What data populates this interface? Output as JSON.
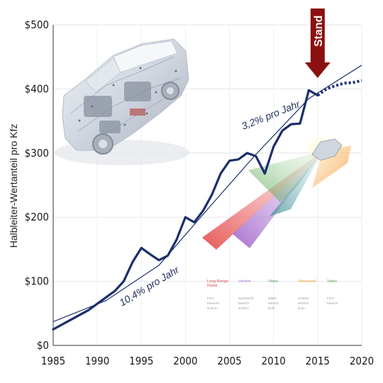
{
  "chart_data": {
    "type": "line",
    "ylabel": "Halbleiter-Wertanteil pro Kfz",
    "x_ticks": [
      "1985",
      "1990",
      "1995",
      "2000",
      "2005",
      "2010",
      "2015",
      "2020"
    ],
    "y_ticks": [
      "$0",
      "$100",
      "$200",
      "$300",
      "$400",
      "$500"
    ],
    "xlim": [
      1985,
      2020
    ],
    "ylim": [
      0,
      500
    ],
    "grid": true,
    "series": [
      {
        "style": "solid",
        "color": "#1b2f6b",
        "points": [
          [
            1985,
            25
          ],
          [
            1987,
            40
          ],
          [
            1989,
            55
          ],
          [
            1991,
            75
          ],
          [
            1992,
            85
          ],
          [
            1993,
            100
          ],
          [
            1994,
            130
          ],
          [
            1995,
            152
          ],
          [
            1996,
            142
          ],
          [
            1997,
            133
          ],
          [
            1998,
            140
          ],
          [
            1999,
            165
          ],
          [
            2000,
            200
          ],
          [
            2001,
            192
          ],
          [
            2002,
            210
          ],
          [
            2003,
            235
          ],
          [
            2004,
            268
          ],
          [
            2005,
            288
          ],
          [
            2006,
            290
          ],
          [
            2007,
            300
          ],
          [
            2008,
            295
          ],
          [
            2009,
            268
          ],
          [
            2010,
            310
          ],
          [
            2011,
            335
          ],
          [
            2012,
            345
          ],
          [
            2013,
            346
          ],
          [
            2014,
            398
          ],
          [
            2015,
            390
          ]
        ]
      },
      {
        "style": "dotted",
        "color": "#1b2f6b",
        "points": [
          [
            2015,
            390
          ],
          [
            2016,
            400
          ],
          [
            2017,
            405
          ],
          [
            2018,
            409
          ],
          [
            2019,
            410
          ],
          [
            2020,
            413
          ]
        ]
      }
    ],
    "trend_lines": [
      {
        "points": [
          [
            1985,
            37
          ],
          [
            1991,
            70
          ],
          [
            1997,
            125
          ],
          [
            2003,
            220
          ]
        ],
        "color": "#1b2f6b"
      },
      {
        "points": [
          [
            2003,
            220
          ],
          [
            2008,
            298
          ],
          [
            2014,
            385
          ],
          [
            2020,
            437
          ]
        ],
        "color": "#1b2f6b"
      }
    ],
    "annotations": [
      {
        "text": "10,4% pro Jahr"
      },
      {
        "text": "3,2% pro Jahr"
      },
      {
        "text": "Stand",
        "x": 2015,
        "color": "#8b1010"
      }
    ],
    "legend_columns": [
      {
        "title": "Long Range\nRadar",
        "color": "#e05050",
        "body": "Fern-\nbereichs\nsichern"
      },
      {
        "title": "Infrarot",
        "color": "#b080d0",
        "body": "Nachtsicht-\nbereich\nsichern"
      },
      {
        "title": "Video",
        "color": "#60a060",
        "body": "Mittel-\nbereich\nsicht"
      },
      {
        "title": "Ultraschall",
        "color": "#f0a040",
        "body": "Umfeld-\nbereich\nscan"
      },
      {
        "title": "Video",
        "color": "#60a060",
        "body": "Fern-\nbereich"
      }
    ]
  }
}
